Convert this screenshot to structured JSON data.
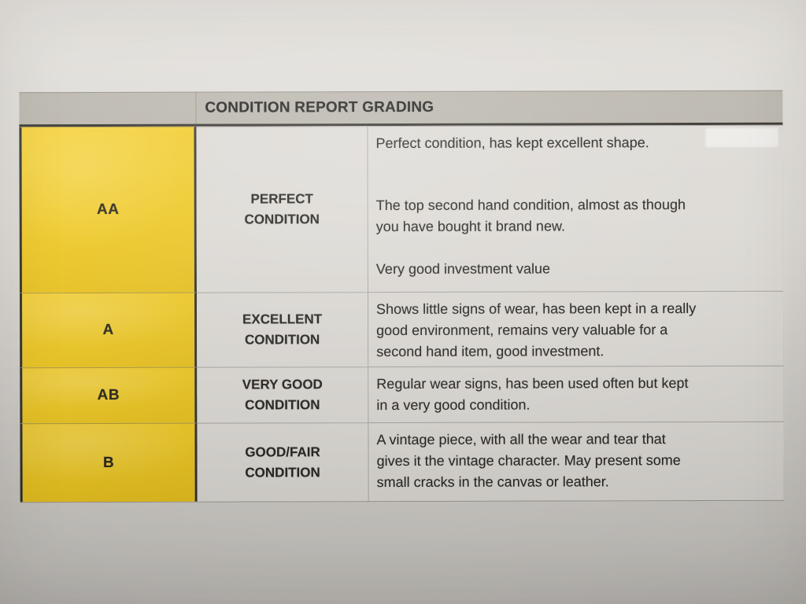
{
  "document": {
    "title": "CONDITION REPORT GRADING",
    "grades": [
      {
        "code": "AA",
        "label": "PERFECT CONDITION",
        "paragraphs": [
          [
            "Perfect condition, has kept excellent shape."
          ],
          [
            "The top second hand condition, almost as though",
            "you have bought it brand new."
          ],
          [
            "Very good investment value"
          ]
        ]
      },
      {
        "code": "A",
        "label": "EXCELLENT CONDITION",
        "paragraphs": [
          [
            "Shows little signs of wear, has been kept in a really",
            "good environment, remains very valuable for a",
            "second hand item, good investment."
          ]
        ]
      },
      {
        "code": "AB",
        "label": "VERY GOOD CONDITION",
        "paragraphs": [
          [
            "Regular wear signs, has been used often but kept",
            "in a very good condition."
          ]
        ]
      },
      {
        "code": "B",
        "label": "GOOD/FAIR CONDITION",
        "paragraphs": [
          [
            "A vintage piece, with all the wear and tear that",
            "gives it the vintage character. May present some",
            "small cracks in the canvas or leather."
          ]
        ]
      }
    ],
    "colors": {
      "grade_column": "#eec71f",
      "header_bar": "#b7b3aa",
      "paper": "#d8d5d0",
      "cell_background": "#dcd9d4",
      "text": "#211f1b"
    }
  }
}
